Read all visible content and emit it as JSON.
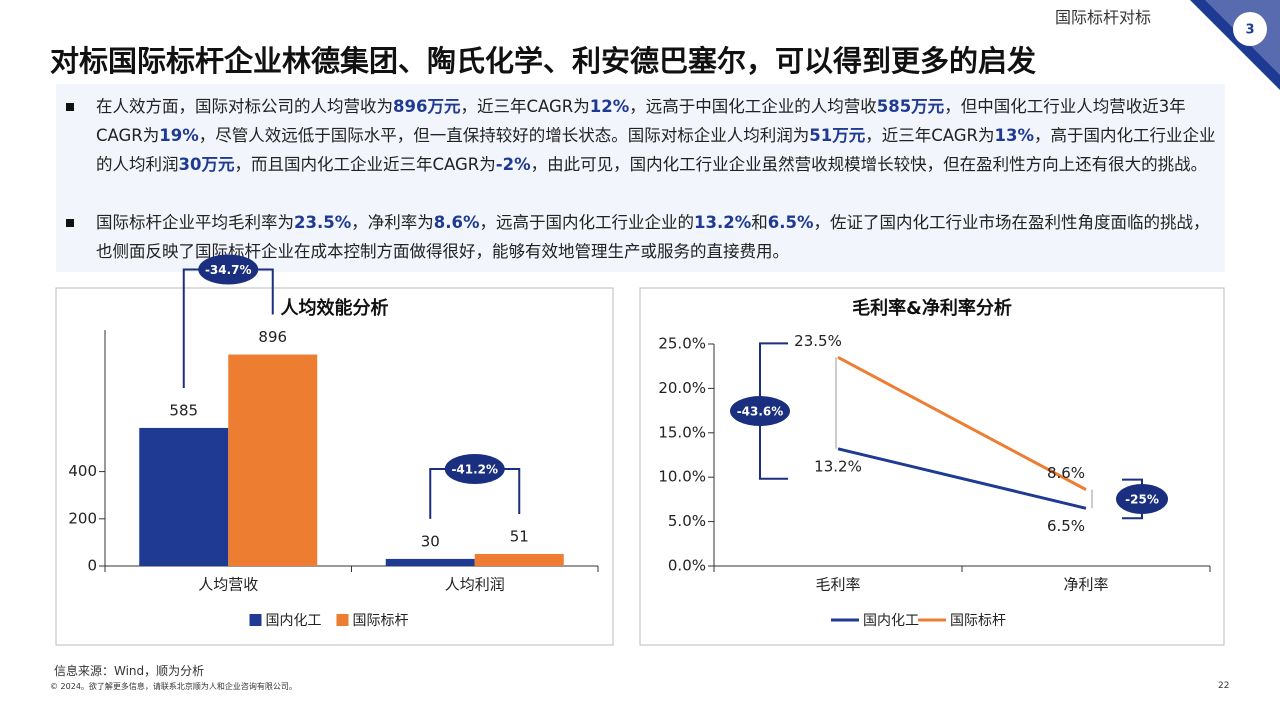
{
  "header": {
    "section": "国际标杆对标",
    "badge": "3",
    "title": "对标国际标杆企业林德集团、陶氏化学、利安德巴塞尔，可以得到更多的启发"
  },
  "bullets": [
    [
      "在人效方面，国际对标公司的人均营收为",
      "896万元",
      "，近三年CAGR为",
      "12%",
      "，远高于中国化工企业的人均营收",
      "585万元",
      "，但中国化工行业人均营收近3年CAGR为",
      "19%",
      "，尽管人效远低于国际水平，但一直保持较好的增长状态。国际对标企业人均利润为",
      "51万元",
      "，近三年CAGR为",
      "13%",
      "，高于国内化工行业企业的人均利润",
      "30万元",
      "，而且国内化工企业近三年CAGR为",
      "-2%",
      "，由此可见，国内化工行业企业虽然营收规模增长较快，但在盈利性方向上还有很大的挑战。"
    ],
    [
      "国际标杆企业平均毛利率为",
      "23.5%",
      "，净利率为",
      "8.6%",
      "，远高于国内化工行业企业的",
      "13.2%",
      "和",
      "6.5%",
      "，佐证了国内化工行业市场在盈利性角度面临的挑战，也侧面反映了国际标杆企业在成本控制方面做得很好，能够有效地管理生产或服务的直接费用。"
    ]
  ],
  "chart_data": [
    {
      "type": "bar",
      "title": "人均效能分析",
      "categories": [
        "人均营收",
        "人均利润"
      ],
      "series": [
        {
          "name": "国内化工",
          "color": "#1f3a93",
          "values": [
            585,
            30
          ]
        },
        {
          "name": "国际标杆",
          "color": "#ed7d31",
          "values": [
            896,
            51
          ]
        }
      ],
      "ylim": [
        0,
        1000
      ],
      "yticks": [
        0,
        200,
        400
      ],
      "annotations": [
        "-34.7%",
        "-41.2%"
      ],
      "legend": "bottom"
    },
    {
      "type": "line",
      "title": "毛利率&净利率分析",
      "categories": [
        "毛利率",
        "净利率"
      ],
      "series": [
        {
          "name": "国内化工",
          "color": "#1f3a93",
          "values": [
            13.2,
            6.5
          ],
          "value_labels": [
            "13.2%",
            "6.5%"
          ]
        },
        {
          "name": "国际标杆",
          "color": "#ed7d31",
          "values": [
            23.5,
            8.6
          ],
          "value_labels": [
            "23.5%",
            "8.6%"
          ]
        }
      ],
      "ylim": [
        0,
        25
      ],
      "yticks": [
        {
          "value": 0,
          "label": "0.0%"
        },
        {
          "value": 5,
          "label": "5.0%"
        },
        {
          "value": 10,
          "label": "10.0%"
        },
        {
          "value": 15,
          "label": "15.0%"
        },
        {
          "value": 20,
          "label": "20.0%"
        },
        {
          "value": 25,
          "label": "25.0%"
        }
      ],
      "annotations": [
        "-43.6%",
        "-25%"
      ],
      "legend": "bottom"
    }
  ],
  "source": "信息来源：Wind，顺为分析",
  "footer": "© 2024。欲了解更多信息，请联系北京顺为人和企业咨询有限公司。",
  "page": "22"
}
